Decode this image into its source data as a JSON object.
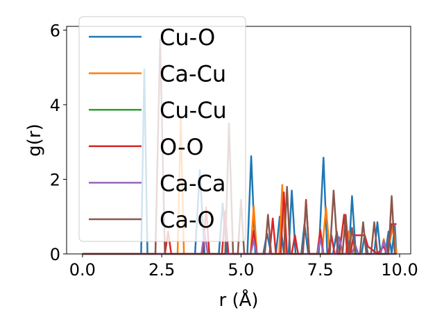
{
  "chart_data": {
    "type": "line",
    "title": "",
    "xlabel": "r (Å)",
    "ylabel": "g(r)",
    "xlim": [
      -0.5,
      10.35
    ],
    "ylim": [
      0,
      6.1
    ],
    "xticks": [
      0.0,
      2.5,
      5.0,
      7.5,
      10.0
    ],
    "xtick_labels": [
      "0.0",
      "2.5",
      "5.0",
      "7.5",
      "10.0"
    ],
    "yticks": [
      0,
      2,
      4,
      6
    ],
    "ytick_labels": [
      "0",
      "2",
      "4",
      "6"
    ],
    "grid": false,
    "legend_position": "top-left",
    "series": [
      {
        "name": "Cu-O",
        "color": "#1f77b4",
        "points": [
          [
            0,
            0
          ],
          [
            1.7,
            0
          ],
          [
            1.85,
            0
          ],
          [
            1.95,
            4.95
          ],
          [
            2.05,
            0
          ],
          [
            3.55,
            0
          ],
          [
            3.7,
            2.25
          ],
          [
            3.85,
            0
          ],
          [
            4.3,
            0
          ],
          [
            4.42,
            1.35
          ],
          [
            4.55,
            0
          ],
          [
            5.2,
            0
          ],
          [
            5.32,
            2.62
          ],
          [
            5.45,
            0
          ],
          [
            5.7,
            0
          ],
          [
            5.82,
            0.55
          ],
          [
            5.95,
            0
          ],
          [
            6.1,
            0
          ],
          [
            6.22,
            1.0
          ],
          [
            6.35,
            0
          ],
          [
            6.5,
            0
          ],
          [
            6.6,
            1.7
          ],
          [
            6.72,
            0
          ],
          [
            6.9,
            0
          ],
          [
            7.0,
            0.8
          ],
          [
            7.12,
            0
          ],
          [
            7.45,
            0
          ],
          [
            7.6,
            2.58
          ],
          [
            7.72,
            0
          ],
          [
            7.9,
            0
          ],
          [
            8.02,
            0.6
          ],
          [
            8.12,
            0
          ],
          [
            8.4,
            0
          ],
          [
            8.5,
            1.55
          ],
          [
            8.62,
            0
          ],
          [
            8.8,
            0
          ],
          [
            8.9,
            0.5
          ],
          [
            9.0,
            0
          ],
          [
            9.2,
            0
          ],
          [
            9.3,
            0.85
          ],
          [
            9.4,
            0
          ],
          [
            9.55,
            0
          ],
          [
            9.65,
            0.6
          ],
          [
            9.75,
            0
          ],
          [
            9.85,
            0.75
          ],
          [
            9.9,
            0
          ]
        ]
      },
      {
        "name": "Ca-Cu",
        "color": "#ff7f0e",
        "points": [
          [
            0,
            0
          ],
          [
            3.0,
            0
          ],
          [
            3.1,
            3.6
          ],
          [
            3.2,
            0
          ],
          [
            5.3,
            0
          ],
          [
            5.4,
            1.28
          ],
          [
            5.5,
            0
          ],
          [
            6.2,
            0
          ],
          [
            6.3,
            1.85
          ],
          [
            6.4,
            0
          ],
          [
            7.55,
            0
          ],
          [
            7.68,
            1.25
          ],
          [
            7.8,
            0
          ],
          [
            8.3,
            0
          ],
          [
            8.4,
            0.6
          ],
          [
            8.5,
            0
          ],
          [
            9.4,
            0
          ],
          [
            9.5,
            0.4
          ],
          [
            9.6,
            0
          ],
          [
            9.8,
            0.75
          ],
          [
            9.9,
            0
          ]
        ]
      },
      {
        "name": "Cu-Cu",
        "color": "#2ca02c",
        "points": [
          [
            0,
            0
          ],
          [
            9.9,
            0
          ]
        ]
      },
      {
        "name": "O-O",
        "color": "#d62728",
        "points": [
          [
            0,
            0
          ],
          [
            2.6,
            0
          ],
          [
            2.7,
            0.6
          ],
          [
            2.8,
            0
          ],
          [
            3.8,
            0
          ],
          [
            3.9,
            1.25
          ],
          [
            4.0,
            0
          ],
          [
            4.4,
            0
          ],
          [
            4.5,
            1.15
          ],
          [
            4.6,
            0
          ],
          [
            5.3,
            0
          ],
          [
            5.4,
            0.62
          ],
          [
            5.5,
            0
          ],
          [
            5.9,
            0
          ],
          [
            6.0,
            0.95
          ],
          [
            6.1,
            0
          ],
          [
            6.25,
            0
          ],
          [
            6.35,
            1.65
          ],
          [
            6.45,
            0
          ],
          [
            6.6,
            0
          ],
          [
            6.7,
            0.5
          ],
          [
            6.8,
            0
          ],
          [
            6.95,
            0
          ],
          [
            7.05,
            1.45
          ],
          [
            7.15,
            0
          ],
          [
            7.4,
            0
          ],
          [
            7.5,
            0.65
          ],
          [
            7.6,
            0
          ],
          [
            7.75,
            0
          ],
          [
            7.85,
            0.5
          ],
          [
            7.95,
            0
          ],
          [
            8.1,
            0
          ],
          [
            8.25,
            1.05
          ],
          [
            8.35,
            0
          ],
          [
            8.45,
            0
          ],
          [
            8.55,
            0.5
          ],
          [
            8.9,
            0.5
          ],
          [
            9.0,
            0.2
          ],
          [
            9.3,
            0
          ],
          [
            9.5,
            0.2
          ],
          [
            9.6,
            0
          ],
          [
            9.75,
            0.8
          ],
          [
            9.9,
            0.8
          ]
        ]
      },
      {
        "name": "Ca-Ca",
        "color": "#9467bd",
        "points": [
          [
            0,
            0
          ],
          [
            3.75,
            0
          ],
          [
            3.85,
            0.6
          ],
          [
            3.95,
            0
          ],
          [
            5.3,
            0
          ],
          [
            5.4,
            0.35
          ],
          [
            5.5,
            0
          ],
          [
            7.4,
            0
          ],
          [
            7.5,
            0.4
          ],
          [
            7.6,
            0
          ],
          [
            8.0,
            0
          ],
          [
            8.1,
            0.45
          ],
          [
            8.2,
            0
          ],
          [
            8.5,
            0
          ],
          [
            8.6,
            0.25
          ],
          [
            8.7,
            0
          ],
          [
            9.4,
            0
          ],
          [
            9.5,
            0.35
          ],
          [
            9.6,
            0
          ],
          [
            9.9,
            0
          ]
        ]
      },
      {
        "name": "Ca-O",
        "color": "#8c564b",
        "points": [
          [
            0,
            0
          ],
          [
            2.3,
            0
          ],
          [
            2.45,
            5.75
          ],
          [
            2.6,
            0
          ],
          [
            4.5,
            0
          ],
          [
            4.62,
            3.5
          ],
          [
            4.75,
            0
          ],
          [
            4.9,
            0
          ],
          [
            5.0,
            1.45
          ],
          [
            5.1,
            0
          ],
          [
            5.75,
            0
          ],
          [
            5.85,
            1.05
          ],
          [
            5.95,
            0
          ],
          [
            6.35,
            0
          ],
          [
            6.45,
            1.8
          ],
          [
            6.55,
            0
          ],
          [
            6.95,
            0
          ],
          [
            7.05,
            1.4
          ],
          [
            7.15,
            0
          ],
          [
            7.8,
            0
          ],
          [
            7.92,
            1.7
          ],
          [
            8.05,
            0
          ],
          [
            8.2,
            0
          ],
          [
            8.3,
            1.05
          ],
          [
            8.4,
            0
          ],
          [
            8.5,
            0.7
          ],
          [
            8.6,
            0
          ],
          [
            8.75,
            0
          ],
          [
            8.85,
            0.85
          ],
          [
            8.95,
            0
          ],
          [
            9.1,
            0
          ],
          [
            9.2,
            0.85
          ],
          [
            9.3,
            0
          ],
          [
            9.65,
            0
          ],
          [
            9.75,
            1.55
          ],
          [
            9.85,
            0
          ]
        ]
      }
    ]
  }
}
